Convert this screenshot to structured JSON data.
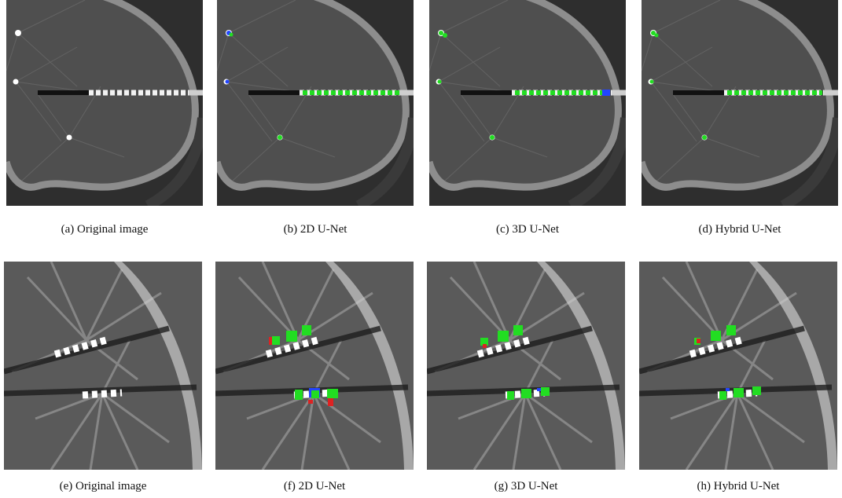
{
  "figure": {
    "panels": [
      {
        "caption": "(a) Original image"
      },
      {
        "caption": "(b) 2D U-Net"
      },
      {
        "caption": "(c) 3D U-Net"
      },
      {
        "caption": "(d) Hybrid U-Net"
      },
      {
        "caption": "(e) Original image"
      },
      {
        "caption": "(f) 2D U-Net"
      },
      {
        "caption": "(g) 3D U-Net"
      },
      {
        "caption": "(h) Hybrid U-Net"
      }
    ]
  }
}
